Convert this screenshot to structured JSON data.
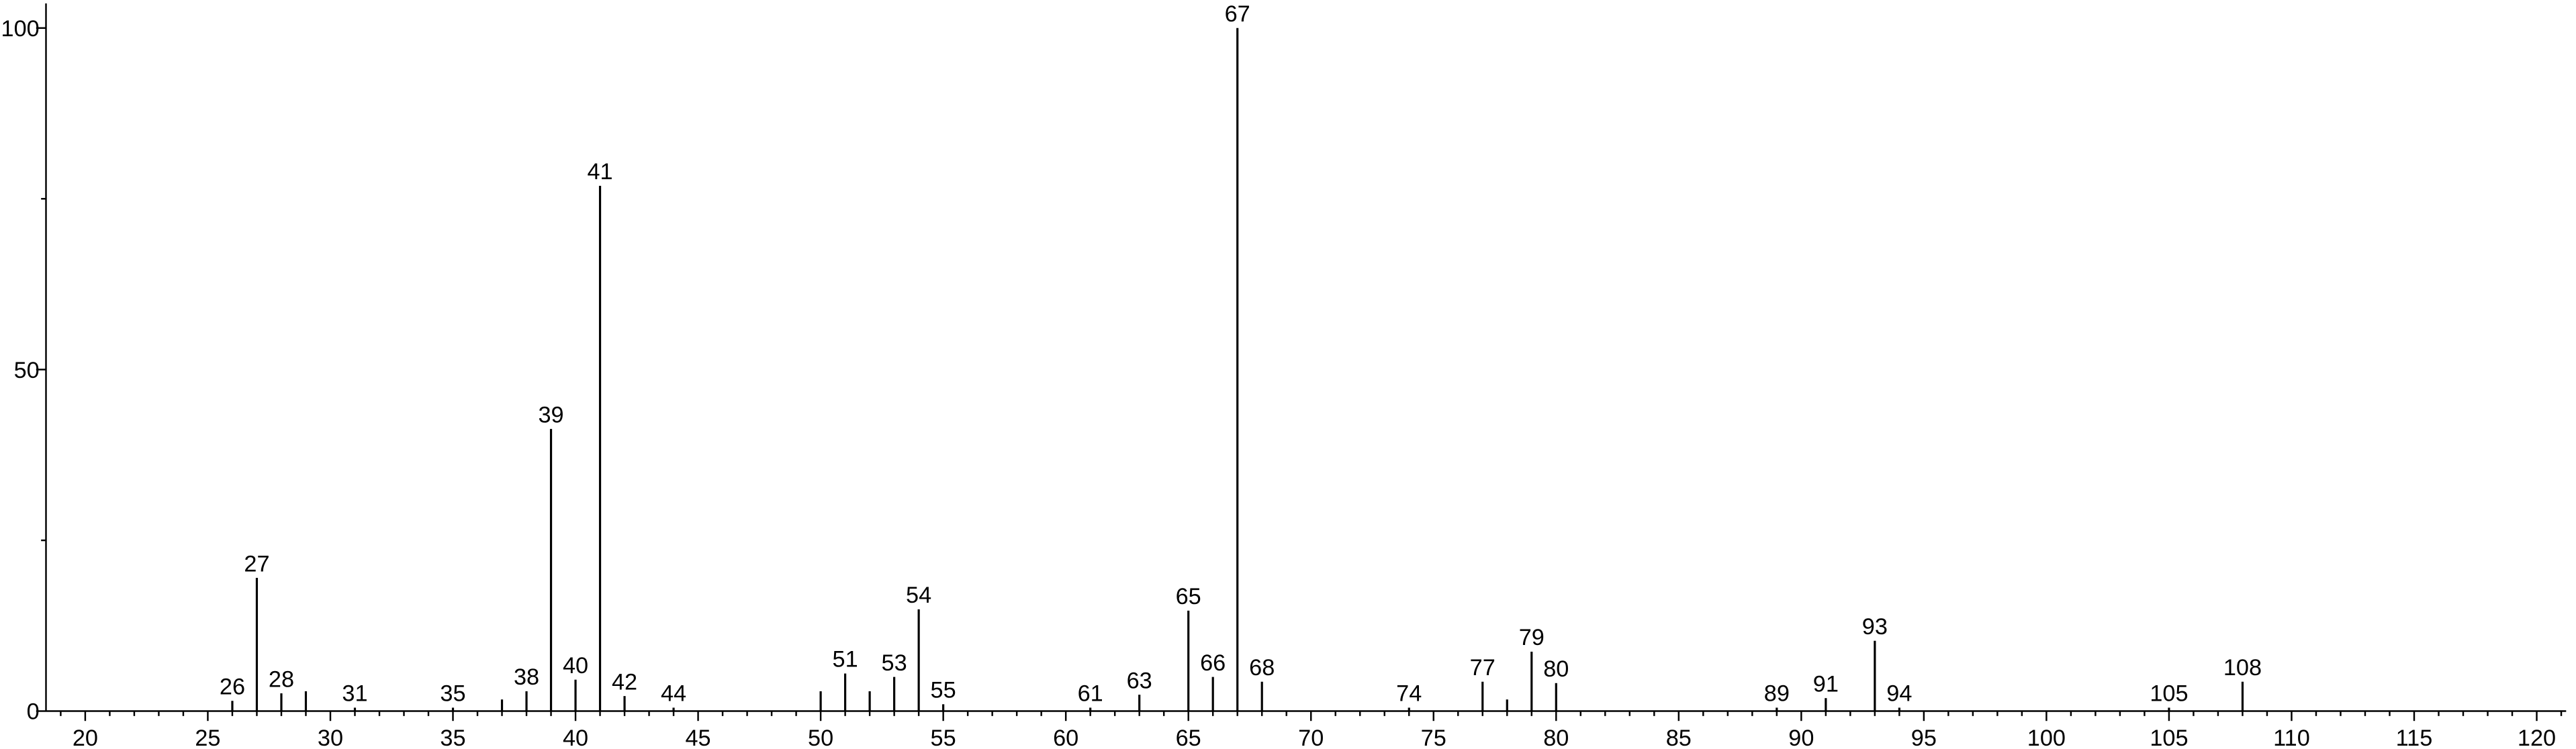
{
  "chart_data": {
    "type": "stick",
    "x": [
      26,
      27,
      28,
      29,
      31,
      35,
      37,
      38,
      39,
      40,
      41,
      42,
      44,
      50,
      51,
      52,
      53,
      54,
      55,
      61,
      63,
      65,
      66,
      67,
      68,
      74,
      77,
      78,
      79,
      80,
      89,
      91,
      93,
      94,
      105,
      108
    ],
    "values": [
      1.5,
      19.5,
      2.6,
      2.9,
      0.5,
      0.5,
      1.7,
      2.9,
      41.3,
      4.6,
      76.9,
      2.2,
      0.5,
      2.9,
      5.5,
      2.9,
      5.0,
      14.9,
      1.0,
      0.5,
      2.4,
      14.7,
      5.0,
      100,
      4.3,
      0.5,
      4.3,
      1.7,
      8.7,
      4.1,
      0.5,
      1.9,
      10.3,
      0.5,
      0.5,
      4.3
    ],
    "peak_labels": [
      26,
      27,
      28,
      null,
      31,
      35,
      null,
      38,
      39,
      40,
      41,
      42,
      44,
      null,
      51,
      null,
      53,
      54,
      55,
      61,
      63,
      65,
      66,
      67,
      68,
      74,
      77,
      null,
      79,
      80,
      89,
      91,
      93,
      94,
      105,
      108
    ],
    "color": "#000000",
    "xlim": [
      18.4,
      121.2
    ],
    "xticks": [
      20,
      25,
      30,
      35,
      40,
      45,
      50,
      55,
      60,
      65,
      70,
      75,
      80,
      85,
      90,
      95,
      100,
      105,
      110,
      115,
      120
    ],
    "xminorticks": [
      19,
      21,
      22,
      23,
      24,
      26,
      27,
      28,
      29,
      31,
      32,
      33,
      34,
      36,
      37,
      38,
      39,
      41,
      42,
      43,
      44,
      46,
      47,
      48,
      49,
      51,
      52,
      53,
      54,
      56,
      57,
      58,
      59,
      61,
      62,
      63,
      64,
      66,
      67,
      68,
      69,
      71,
      72,
      73,
      74,
      76,
      77,
      78,
      79,
      81,
      82,
      83,
      84,
      86,
      87,
      88,
      89,
      91,
      92,
      93,
      94,
      96,
      97,
      98,
      99,
      101,
      102,
      103,
      104,
      106,
      107,
      108,
      109,
      111,
      112,
      113,
      114,
      116,
      117,
      118,
      119,
      121
    ],
    "ylim": [
      0,
      103.6
    ],
    "yticks": [
      0,
      50,
      100
    ],
    "yminorticks": [
      25,
      75
    ]
  }
}
